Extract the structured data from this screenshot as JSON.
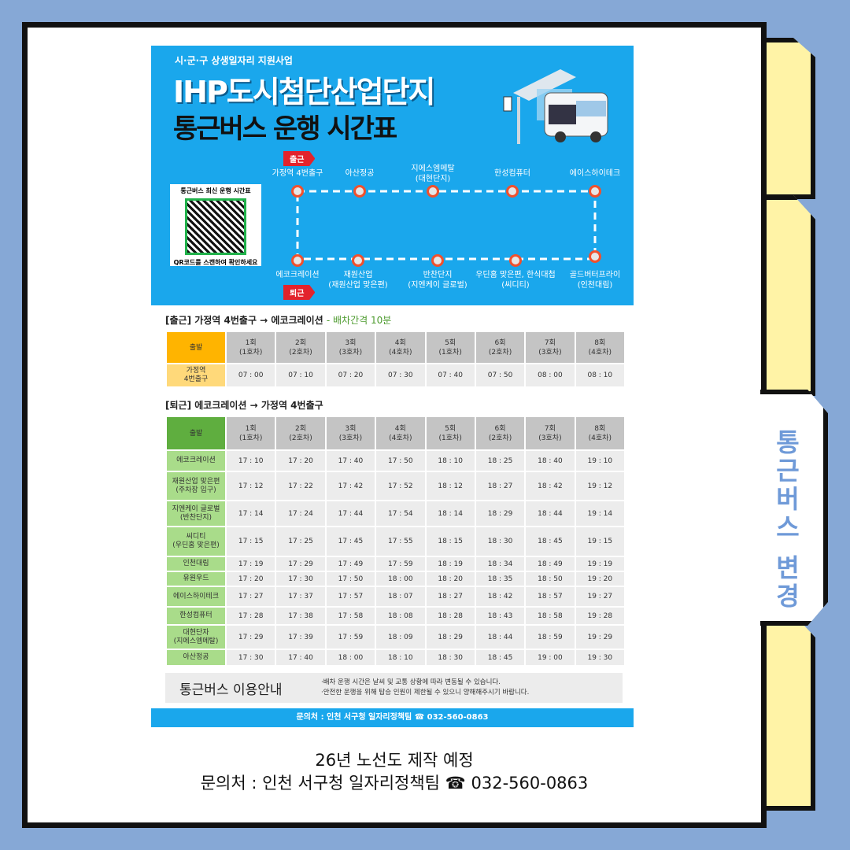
{
  "side_tab": "통근버스 변경",
  "header": {
    "subtitle": "시·군·구 상생일자리 지원사업",
    "title1": "IHP도시첨단산업단지",
    "title2": "통근버스 운행 시간표"
  },
  "qr": {
    "title": "통근버스 최신 운행 시간표",
    "caption": "QR코드를 스캔하여 확인하세요"
  },
  "route": {
    "out_label": "출근",
    "in_label": "퇴근",
    "top": [
      "가정역 4번출구",
      "아산정공",
      "지에스엠메탈\n(대현단지)",
      "한성컴퓨터",
      "에이스하이테크"
    ],
    "bottom": [
      "에코크레이션",
      "재원산업\n(재원산업 맞은편)",
      "반찬단지\n(지엔케이 글로벌)",
      "우딘홈 맞은편, 한식대첩\n(씨디티)",
      "골드버터프라이\n(인천대림)"
    ]
  },
  "outbound": {
    "title": "[출근] 가정역 4번출구 → 에코크레이션",
    "note": "- 배차간격 10분",
    "corner": "출발",
    "columns": [
      "1회\n(1호차)",
      "2회\n(2호차)",
      "3회\n(3호차)",
      "4회\n(4호차)",
      "5회\n(1호차)",
      "6회\n(2호차)",
      "7회\n(3호차)",
      "8회\n(4호차)"
    ],
    "rows": [
      {
        "stop": "가정역\n4번출구",
        "times": [
          "07 : 00",
          "07 : 10",
          "07 : 20",
          "07 : 30",
          "07  : 40",
          "07 : 50",
          "08 : 00",
          "08 : 10"
        ]
      }
    ]
  },
  "inbound": {
    "title": "[퇴근] 에코크레이션 → 가정역 4번출구",
    "corner": "출발",
    "columns": [
      "1회\n(1호차)",
      "2회\n(2호차)",
      "3회\n(3호차)",
      "4회\n(4호차)",
      "5회\n(1호차)",
      "6회\n(2호차)",
      "7회\n(3호차)",
      "8회\n(4호차)"
    ],
    "rows": [
      {
        "stop": "에코크레이션",
        "times": [
          "17 : 10",
          "17 : 20",
          "17 : 40",
          "17 : 50",
          "18 : 10",
          "18 : 25",
          "18 : 40",
          "19 : 10"
        ]
      },
      {
        "stop": "재원산업 맞은편\n(주차장 입구)",
        "times": [
          "17 : 12",
          "17 : 22",
          "17 : 42",
          "17 : 52",
          "18 : 12",
          "18 : 27",
          "18 : 42",
          "19 : 12"
        ]
      },
      {
        "stop": "지엔케이 글로벌\n(반찬단지)",
        "times": [
          "17 : 14",
          "17 : 24",
          "17 : 44",
          "17 : 54",
          "18 : 14",
          "18 : 29",
          "18 : 44",
          "19 : 14"
        ]
      },
      {
        "stop": "씨디티\n(우딘홈 맞은편)",
        "times": [
          "17 : 15",
          "17 : 25",
          "17 : 45",
          "17 : 55",
          "18 : 15",
          "18 : 30",
          "18 : 45",
          "19 : 15"
        ]
      },
      {
        "stop": "인천대림",
        "times": [
          "17 : 19",
          "17 : 29",
          "17 : 49",
          "17 : 59",
          "18 : 19",
          "18 : 34",
          "18 : 49",
          "19 : 19"
        ]
      },
      {
        "stop": "유원우드",
        "times": [
          "17 : 20",
          "17 : 30",
          "17 : 50",
          "18 : 00",
          "18 : 20",
          "18 : 35",
          "18 : 50",
          "19 : 20"
        ]
      },
      {
        "stop": "에이스하이테크",
        "times": [
          "17 : 27",
          "17 : 37",
          "17 : 57",
          "18 : 07",
          "18 : 27",
          "18 : 42",
          "18 : 57",
          "19 : 27"
        ]
      },
      {
        "stop": "한성컴퓨터",
        "times": [
          "17 : 28",
          "17 : 38",
          "17 : 58",
          "18 : 08",
          "18 : 28",
          "18 : 43",
          "18 : 58",
          "19 : 28"
        ]
      },
      {
        "stop": "대현단자\n(지에스엠메탈)",
        "times": [
          "17 : 29",
          "17 : 39",
          "17 : 59",
          "18 : 09",
          "18 : 29",
          "18 : 44",
          "18 : 59",
          "19 : 29"
        ]
      },
      {
        "stop": "아산정공",
        "times": [
          "17 : 30",
          "17 : 40",
          "18 : 00",
          "18 : 10",
          "18 : 30",
          "18 : 45",
          "19 : 00",
          "19 : 30"
        ]
      }
    ]
  },
  "info": {
    "heading": "통근버스 이용안내",
    "notes": [
      "·배차 운행 시간은 날씨 및 교통 상황에 따라 변동될 수 있습니다.",
      "·안전한 운행을 위해 탑승 인원이 제한될 수 있으니 양해해주시기 바랍니다."
    ]
  },
  "footer": "문의처 : 인천 서구청 일자리정책팀 ☎ 032-560-0863",
  "bottom": {
    "line1": "26년 노선도 제작 예정",
    "line2": "문의처 : 인천 서구청 일자리정책팀 ☎ 032-560-0863"
  },
  "colors": {
    "hero": "#1aa7ec",
    "outbound_header": "#ffb400",
    "outbound_stop": "#ffd97a",
    "inbound_header": "#5fae3f",
    "inbound_stop": "#a9dc8a",
    "tab": "#fff3a6",
    "background": "#86a8d6"
  }
}
